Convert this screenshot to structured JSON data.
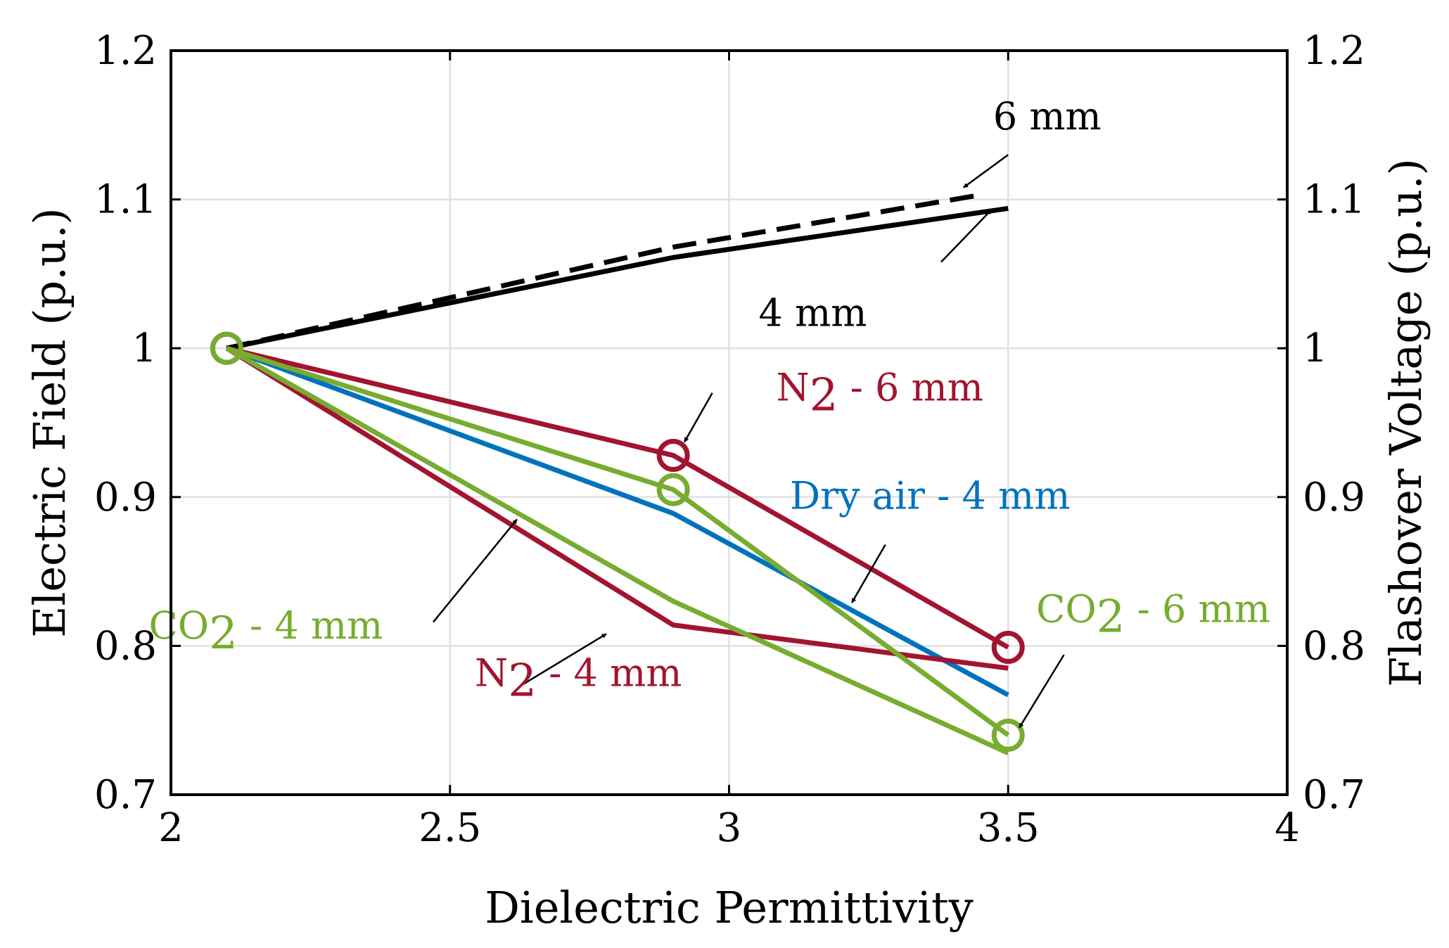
{
  "chart_data": {
    "type": "line",
    "xlabel": "Dielectric Permittivity",
    "ylabel": "Electric Field (p.u.)",
    "ylabel_right": "Flashover Voltage (p.u.)",
    "xlim": [
      2,
      4
    ],
    "ylim": [
      0.7,
      1.2
    ],
    "xticks": [
      "2",
      "2.5",
      "3",
      "3.5",
      "4"
    ],
    "yticks": [
      "0.7",
      "0.8",
      "0.9",
      "1",
      "1.1",
      "1.2"
    ],
    "yticks_right": [
      "0.7",
      "0.8",
      "0.9",
      "1",
      "1.1",
      "1.2"
    ],
    "grid": true,
    "colors": {
      "black": "#000000",
      "red": "#a2142f",
      "blue": "#0072bd",
      "green": "#77ac30",
      "grid": "#e0e0e0"
    },
    "series": [
      {
        "name": "6 mm (dashed)",
        "color": "#000000",
        "dashed": true,
        "markers": false,
        "axis": "right",
        "x": [
          2.1,
          2.9,
          3.45
        ],
        "y": [
          1.0,
          1.068,
          1.103
        ]
      },
      {
        "name": "4 mm",
        "color": "#000000",
        "dashed": false,
        "markers": false,
        "axis": "right",
        "x": [
          2.1,
          2.9,
          3.5
        ],
        "y": [
          1.0,
          1.061,
          1.094
        ]
      },
      {
        "name": "N2 - 6 mm",
        "color": "#a2142f",
        "dashed": false,
        "markers": true,
        "axis": "left",
        "x": [
          2.1,
          2.9,
          3.5
        ],
        "y": [
          1.0,
          0.928,
          0.799
        ]
      },
      {
        "name": "Dry air - 4 mm",
        "color": "#0072bd",
        "dashed": false,
        "markers": false,
        "axis": "left",
        "x": [
          2.1,
          2.9,
          3.5
        ],
        "y": [
          1.0,
          0.889,
          0.767
        ]
      },
      {
        "name": "N2 - 4 mm",
        "color": "#a2142f",
        "dashed": false,
        "markers": false,
        "axis": "left",
        "x": [
          2.1,
          2.9,
          3.5
        ],
        "y": [
          1.0,
          0.814,
          0.785
        ]
      },
      {
        "name": "CO2 - 4 mm",
        "color": "#77ac30",
        "dashed": false,
        "markers": false,
        "axis": "left",
        "x": [
          2.1,
          2.9,
          3.5
        ],
        "y": [
          1.0,
          0.83,
          0.728
        ]
      },
      {
        "name": "CO2 - 6 mm",
        "color": "#77ac30",
        "dashed": false,
        "markers": true,
        "axis": "left",
        "x": [
          2.1,
          2.9,
          3.5
        ],
        "y": [
          1.0,
          0.905,
          0.74
        ]
      }
    ],
    "annotations": [
      {
        "id": "6mm",
        "text": "6 mm",
        "color": "#000000",
        "text_x": 3.57,
        "text_y": 1.147,
        "arrow_from": [
          3.5,
          1.13
        ],
        "arrow_to": [
          3.42,
          1.108
        ]
      },
      {
        "id": "4mm",
        "text": "4 mm",
        "color": "#000000",
        "text_x": 3.15,
        "text_y": 1.015,
        "arrow_from": [
          3.38,
          1.058
        ],
        "arrow_to": [
          3.47,
          1.093
        ]
      },
      {
        "id": "n2_6",
        "text": "N",
        "sub": "2",
        "tail": " - 6 mm",
        "color": "#a2142f",
        "text_x": 3.27,
        "text_y": 0.965,
        "arrow_from": [
          2.97,
          0.97
        ],
        "arrow_to": [
          2.92,
          0.937
        ]
      },
      {
        "id": "dry4",
        "text": "Dry air - 4 mm",
        "color": "#0072bd",
        "text_x": 3.36,
        "text_y": 0.892,
        "arrow_from": [
          3.28,
          0.868
        ],
        "arrow_to": [
          3.22,
          0.829
        ]
      },
      {
        "id": "co2_4",
        "text": "CO",
        "sub": "2",
        "tail": " - 4 mm",
        "color": "#77ac30",
        "text_x": 2.17,
        "text_y": 0.805,
        "arrow_from": [
          2.47,
          0.816
        ],
        "arrow_to": [
          2.62,
          0.885
        ]
      },
      {
        "id": "n2_4",
        "text": "N",
        "sub": "2",
        "tail": " - 4 mm",
        "color": "#a2142f",
        "text_x": 2.73,
        "text_y": 0.773,
        "arrow_from": [
          2.63,
          0.774
        ],
        "arrow_to": [
          2.78,
          0.808
        ]
      },
      {
        "id": "co2_6",
        "text": "CO",
        "sub": "2",
        "tail": " - 6 mm",
        "color": "#77ac30",
        "text_x": 3.76,
        "text_y": 0.816,
        "arrow_from": [
          3.6,
          0.794
        ],
        "arrow_to": [
          3.52,
          0.745
        ]
      }
    ]
  }
}
